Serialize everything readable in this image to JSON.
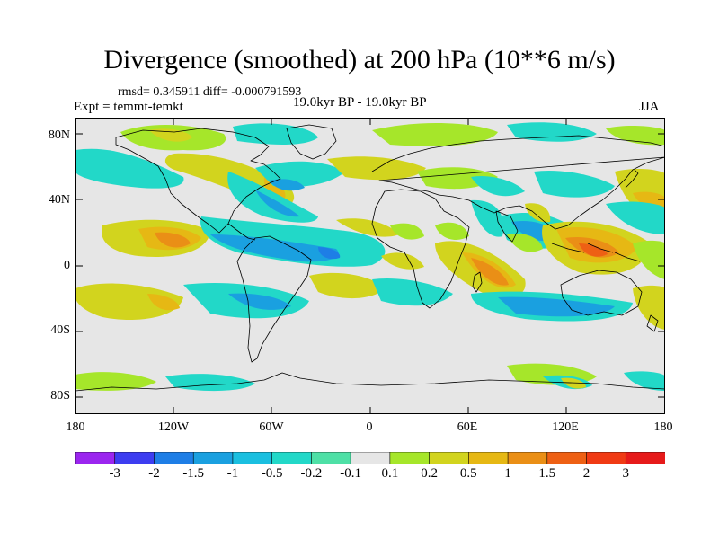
{
  "title": "Divergence (smoothed) at 200 hPa (10**6 m/s)",
  "stats": "rmsd= 0.345911 diff= -0.000791593",
  "experiment": "Expt = temmt-temkt",
  "period": "19.0kyr BP - 19.0kyr BP",
  "season": "JJA",
  "lat_labels": [
    "80N",
    "40N",
    "0",
    "40S",
    "80S"
  ],
  "lon_labels": [
    "180",
    "120W",
    "60W",
    "0",
    "60E",
    "120E",
    "180"
  ],
  "colorbar": {
    "labels": [
      "-3",
      "-2",
      "-1.5",
      "-1",
      "-0.5",
      "-0.2",
      "-0.1",
      "0.1",
      "0.2",
      "0.5",
      "1",
      "1.5",
      "2",
      "3"
    ],
    "colors": [
      "#9b25ef",
      "#3d3df0",
      "#1e7ee6",
      "#1aa0e0",
      "#1abfe0",
      "#22d8c8",
      "#4ee0a6",
      "#e6e6e6",
      "#a6e62a",
      "#d2d41e",
      "#e6b814",
      "#ea8f16",
      "#ee6014",
      "#f03a14",
      "#e61a1a"
    ]
  }
}
